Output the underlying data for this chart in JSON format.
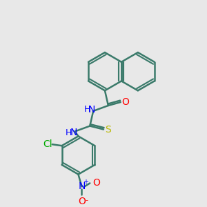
{
  "bg_color": "#e8e8e8",
  "bond_color": "#3a7a6a",
  "bond_width": 1.8,
  "inner_bond_color": "#3a7a6a",
  "atom_colors": {
    "N": "#0000ff",
    "O": "#ff0000",
    "S": "#b8b800",
    "Cl": "#00aa00",
    "C": "#3a7a6a"
  },
  "font_size": 9,
  "label_font_size": 9
}
